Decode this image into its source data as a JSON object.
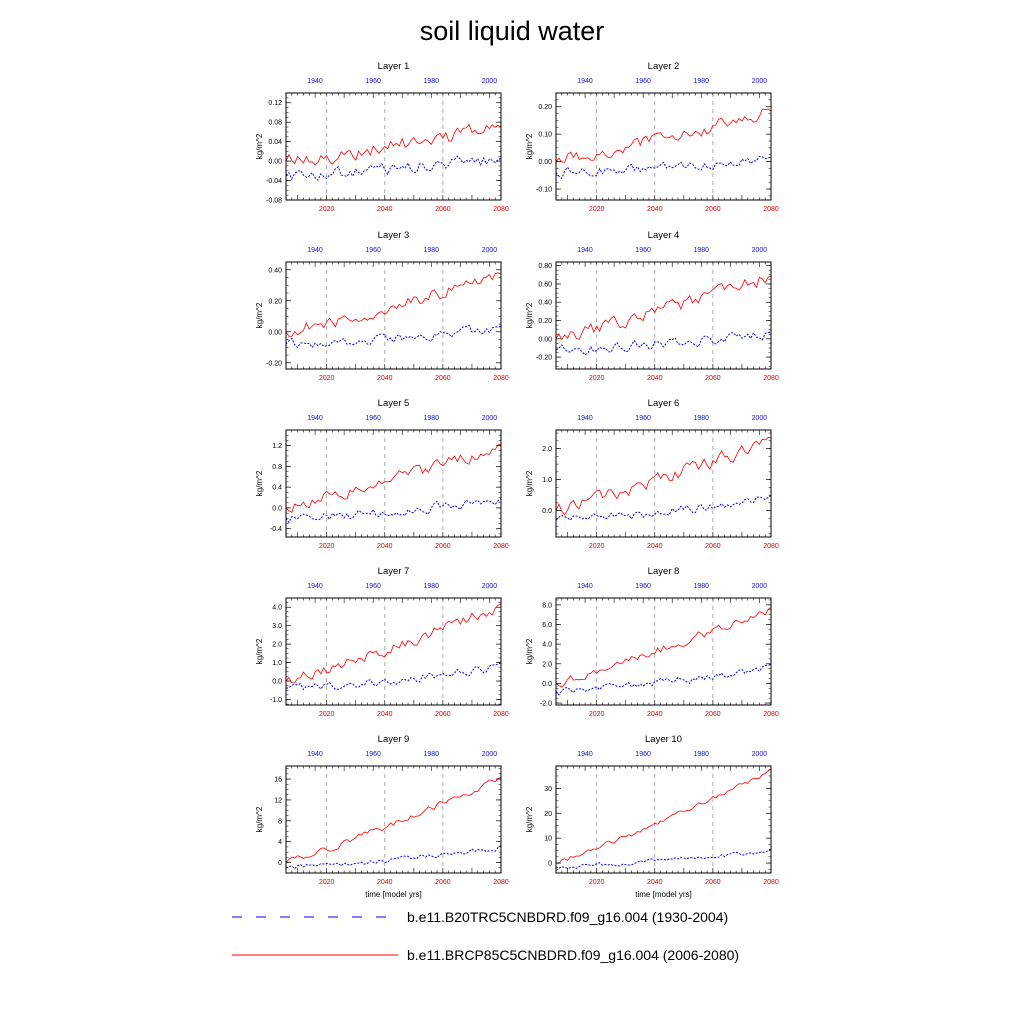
{
  "title": "soil liquid water",
  "chart_data": {
    "type": "line",
    "title": "soil liquid water",
    "xlabel": "time [model yrs]",
    "ylabel": "kg/m^2",
    "bottom_axis": {
      "ticks": [
        2020,
        2040,
        2060,
        2080
      ],
      "range": [
        2006,
        2080
      ]
    },
    "top_axis": {
      "ticks": [
        1940,
        1960,
        1980,
        2000
      ],
      "range": [
        1930,
        2004
      ]
    },
    "series": [
      {
        "name": "b.e11.B20TRC5CNBDRD.f09_g16.004 (1930-2004)",
        "color": "#0000ff",
        "style": "dashed"
      },
      {
        "name": "b.e11.BRCP85C5CNBDRD.f09_g16.004 (2006-2080)",
        "color": "#ff0000",
        "style": "solid"
      }
    ],
    "panels": [
      {
        "title": "Layer 1",
        "ylabel": "kg/m^2",
        "ylim": [
          -0.08,
          0.14
        ],
        "yticks": [
          "-0.08",
          "-0.04",
          "0.00",
          "0.04",
          "0.08",
          "0.12"
        ],
        "ytick_values": [
          -0.08,
          -0.04,
          0.0,
          0.04,
          0.08,
          0.12
        ],
        "red_start": 0.0,
        "red_end": 0.07,
        "red_amp": 0.025,
        "blue_start": -0.03,
        "blue_end": 0.005,
        "blue_amp": 0.02
      },
      {
        "title": "Layer 2",
        "ylabel": "kg/m^2",
        "ylim": [
          -0.14,
          0.25
        ],
        "yticks": [
          "-0.10",
          "0.00",
          "0.10",
          "0.20"
        ],
        "ytick_values": [
          -0.1,
          0.0,
          0.1,
          0.2
        ],
        "red_start": 0.0,
        "red_end": 0.18,
        "red_amp": 0.04,
        "blue_start": -0.04,
        "blue_end": 0.01,
        "blue_amp": 0.03
      },
      {
        "title": "Layer 3",
        "ylabel": "kg/m^2",
        "ylim": [
          -0.24,
          0.45
        ],
        "yticks": [
          "-0.20",
          "0.00",
          "0.20",
          "0.40"
        ],
        "ytick_values": [
          -0.2,
          0.0,
          0.2,
          0.4
        ],
        "red_start": 0.0,
        "red_end": 0.36,
        "red_amp": 0.07,
        "blue_start": -0.08,
        "blue_end": 0.02,
        "blue_amp": 0.05
      },
      {
        "title": "Layer 4",
        "ylabel": "kg/m^2",
        "ylim": [
          -0.33,
          0.84
        ],
        "yticks": [
          "-0.20",
          "0.00",
          "0.20",
          "0.40",
          "0.60",
          "0.80"
        ],
        "ytick_values": [
          -0.2,
          0.0,
          0.2,
          0.4,
          0.6,
          0.8
        ],
        "red_start": 0.0,
        "red_end": 0.68,
        "red_amp": 0.12,
        "blue_start": -0.12,
        "blue_end": 0.05,
        "blue_amp": 0.09
      },
      {
        "title": "Layer 5",
        "ylabel": "kg/m^2",
        "ylim": [
          -0.56,
          1.5
        ],
        "yticks": [
          "-0.4",
          "0.0",
          "0.4",
          "0.8",
          "1.2"
        ],
        "ytick_values": [
          -0.4,
          0.0,
          0.4,
          0.8,
          1.2
        ],
        "red_start": 0.0,
        "red_end": 1.2,
        "red_amp": 0.2,
        "blue_start": -0.2,
        "blue_end": 0.15,
        "blue_amp": 0.15
      },
      {
        "title": "Layer 6",
        "ylabel": "kg/m^2",
        "ylim": [
          -0.85,
          2.6
        ],
        "yticks": [
          "0.0",
          "1.0",
          "2.0"
        ],
        "ytick_values": [
          0.0,
          1.0,
          2.0
        ],
        "red_start": 0.0,
        "red_end": 2.25,
        "red_amp": 0.35,
        "blue_start": -0.3,
        "blue_end": 0.4,
        "blue_amp": 0.25
      },
      {
        "title": "Layer 7",
        "ylabel": "kg/m^2",
        "ylim": [
          -1.3,
          4.5
        ],
        "yticks": [
          "-1.0",
          "0.0",
          "1.0",
          "2.0",
          "3.0",
          "4.0"
        ],
        "ytick_values": [
          -1.0,
          0.0,
          1.0,
          2.0,
          3.0,
          4.0
        ],
        "red_start": 0.0,
        "red_end": 4.0,
        "red_amp": 0.5,
        "blue_start": -0.4,
        "blue_end": 0.8,
        "blue_amp": 0.4
      },
      {
        "title": "Layer 8",
        "ylabel": "kg/m^2",
        "ylim": [
          -2.2,
          8.7
        ],
        "yticks": [
          "-2.0",
          "0.0",
          "2.0",
          "4.0",
          "6.0",
          "8.0"
        ],
        "ytick_values": [
          -2.0,
          0.0,
          2.0,
          4.0,
          6.0,
          8.0
        ],
        "red_start": 0.0,
        "red_end": 7.6,
        "red_amp": 0.7,
        "blue_start": -0.8,
        "blue_end": 1.6,
        "blue_amp": 0.6
      },
      {
        "title": "Layer 9",
        "ylabel": "kg/m^2",
        "ylim": [
          -2.0,
          18.5
        ],
        "yticks": [
          "0",
          "4",
          "8",
          "12",
          "16"
        ],
        "ytick_values": [
          0,
          4,
          8,
          12,
          16
        ],
        "red_start": 0.0,
        "red_end": 16.0,
        "red_amp": 1.0,
        "blue_start": -1.0,
        "blue_end": 3.0,
        "blue_amp": 0.9
      },
      {
        "title": "Layer 10",
        "ylabel": "kg/m^2",
        "ylim": [
          -4.0,
          39.0
        ],
        "yticks": [
          "0",
          "10",
          "20",
          "30"
        ],
        "ytick_values": [
          0,
          10,
          20,
          30
        ],
        "red_start": 0.0,
        "red_end": 37.0,
        "red_amp": 1.6,
        "blue_start": -1.5,
        "blue_end": 5.0,
        "blue_amp": 1.3
      }
    ]
  },
  "legend": {
    "items": [
      {
        "label": "b.e11.B20TRC5CNBDRD.f09_g16.004 (1930-2004)",
        "color": "#0000ff",
        "style": "dashed"
      },
      {
        "label": "b.e11.BRCP85C5CNBDRD.f09_g16.004 (2006-2080)",
        "color": "#ff0000",
        "style": "solid"
      }
    ]
  }
}
